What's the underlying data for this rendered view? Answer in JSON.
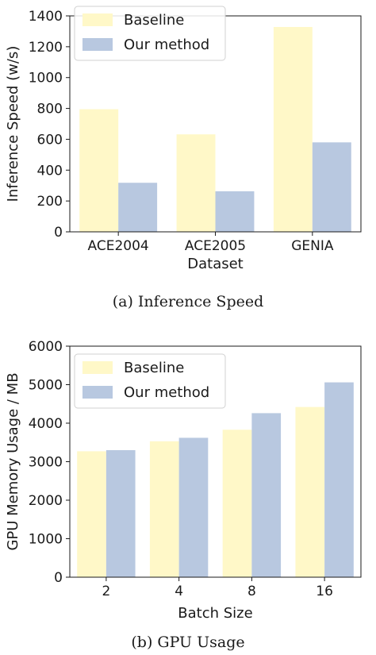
{
  "charts": [
    {
      "caption": "(a)  Inference Speed",
      "chart_data": {
        "type": "bar",
        "categories": [
          "ACE2004",
          "ACE2005",
          "GENIA"
        ],
        "series": [
          {
            "name": "Baseline",
            "values": [
              795,
              632,
              1328
            ],
            "color": "#fff8c8"
          },
          {
            "name": "Our method",
            "values": [
              318,
              263,
              580
            ],
            "color": "#b8c8e0"
          }
        ],
        "xlabel": "Dataset",
        "ylabel": "Inference Speed (w/s)",
        "ylim": [
          0,
          1400
        ],
        "yticks": [
          0,
          200,
          400,
          600,
          800,
          1000,
          1200,
          1400
        ],
        "legend": "top-left",
        "grid": false
      }
    },
    {
      "caption": "(b)  GPU Usage",
      "chart_data": {
        "type": "bar",
        "categories": [
          "2",
          "4",
          "8",
          "16"
        ],
        "series": [
          {
            "name": "Baseline",
            "values": [
              3270,
              3530,
              3830,
              4420
            ],
            "color": "#fff8c8"
          },
          {
            "name": "Our method",
            "values": [
              3300,
              3620,
              4260,
              5060
            ],
            "color": "#b8c8e0"
          }
        ],
        "xlabel": "Batch Size",
        "ylabel": "GPU Memory Usage / MB",
        "ylim": [
          0,
          6000
        ],
        "yticks": [
          0,
          1000,
          2000,
          3000,
          4000,
          5000,
          6000
        ],
        "legend": "top-left",
        "grid": false
      }
    }
  ]
}
